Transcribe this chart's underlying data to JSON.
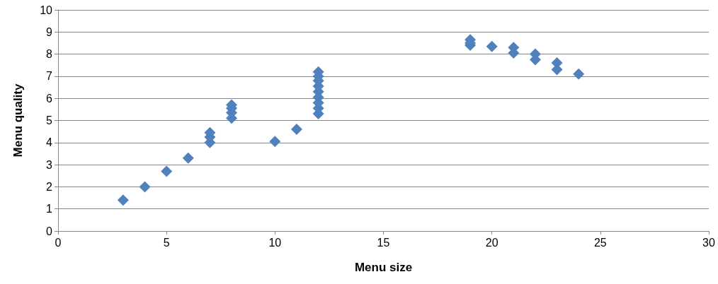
{
  "chart_data": {
    "type": "scatter",
    "xlabel": "Menu size",
    "ylabel": "Menu quality",
    "x": [
      3,
      4,
      5,
      6,
      7,
      7,
      7,
      8,
      8,
      8,
      8,
      10,
      11,
      12,
      12,
      12,
      12,
      12,
      12,
      12,
      12,
      12,
      19,
      19,
      19,
      20,
      21,
      21,
      22,
      22,
      23,
      23,
      24
    ],
    "series": [
      {
        "color": "#4f81bd",
        "values": [
          1.4,
          2.0,
          2.7,
          3.3,
          4.0,
          4.25,
          4.45,
          5.1,
          5.35,
          5.55,
          5.7,
          4.05,
          4.6,
          5.3,
          5.55,
          5.8,
          6.05,
          6.3,
          6.55,
          6.8,
          7.0,
          7.2,
          8.4,
          8.5,
          8.65,
          8.35,
          8.05,
          8.3,
          7.75,
          8.0,
          7.3,
          7.6,
          7.1
        ]
      }
    ],
    "xlim": [
      0,
      30
    ],
    "xticks": [
      0,
      5,
      10,
      15,
      20,
      25,
      30
    ],
    "ylim": [
      0,
      10
    ],
    "yticks": [
      0,
      1,
      2,
      3,
      4,
      5,
      6,
      7,
      8,
      9,
      10
    ],
    "grid": "y",
    "marker": "diamond"
  }
}
